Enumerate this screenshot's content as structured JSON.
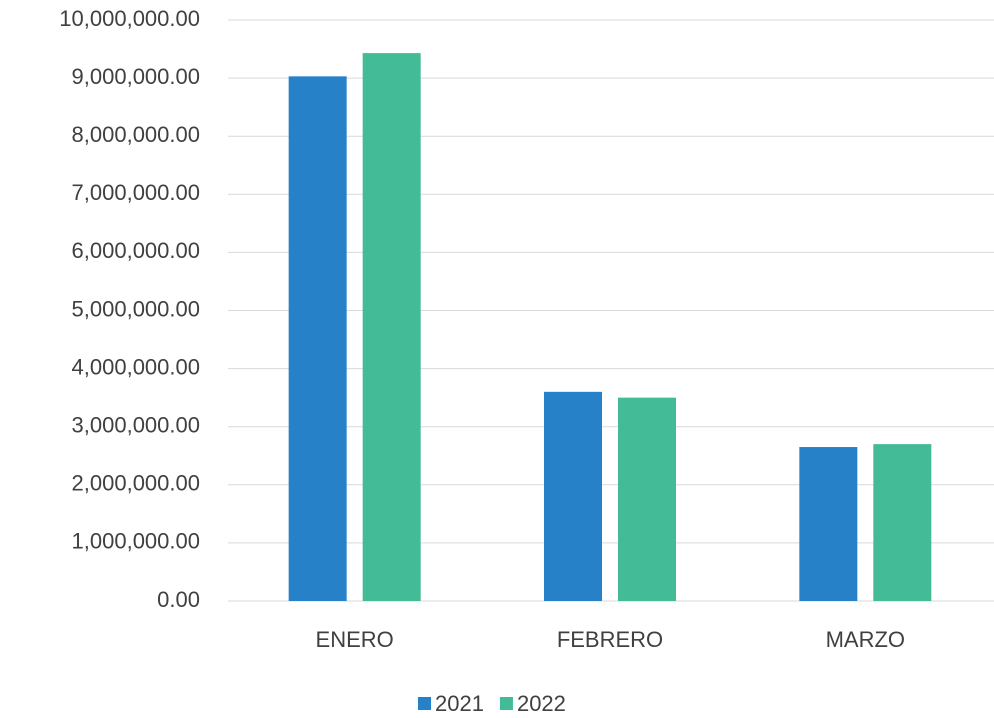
{
  "chart_data": {
    "type": "bar",
    "categories": [
      "ENERO",
      "FEBRERO",
      "MARZO"
    ],
    "series": [
      {
        "name": "2021",
        "color": "#2781c9",
        "values": [
          9030000,
          3600000,
          2650000
        ]
      },
      {
        "name": "2022",
        "color": "#43bb97",
        "values": [
          9430000,
          3500000,
          2700000
        ]
      }
    ],
    "ylim": [
      0,
      10000000
    ],
    "yticks": [
      {
        "value": 0,
        "label": "0.00"
      },
      {
        "value": 1000000,
        "label": "1,000,000.00"
      },
      {
        "value": 2000000,
        "label": "2,000,000.00"
      },
      {
        "value": 3000000,
        "label": "3,000,000.00"
      },
      {
        "value": 4000000,
        "label": "4,000,000.00"
      },
      {
        "value": 5000000,
        "label": "5,000,000.00"
      },
      {
        "value": 6000000,
        "label": "6,000,000.00"
      },
      {
        "value": 7000000,
        "label": "7,000,000.00"
      },
      {
        "value": 8000000,
        "label": "8,000,000.00"
      },
      {
        "value": 9000000,
        "label": "9,000,000.00"
      },
      {
        "value": 10000000,
        "label": "10,000,000.00"
      }
    ],
    "grid": true,
    "legend": "bottom"
  }
}
